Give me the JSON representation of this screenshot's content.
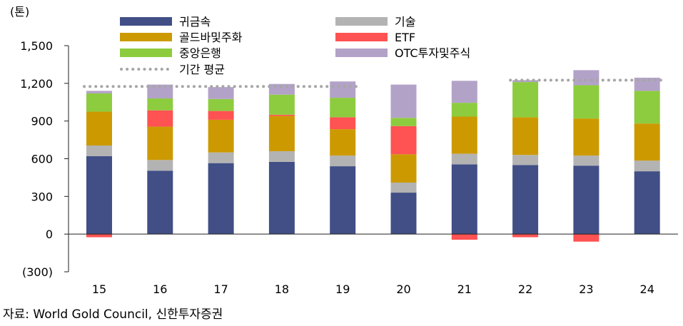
{
  "chart_data": {
    "type": "bar",
    "stacked": true,
    "unit_label": "(톤)",
    "categories": [
      "15",
      "16",
      "17",
      "18",
      "19",
      "20",
      "21",
      "22",
      "23",
      "24"
    ],
    "ylim": [
      -300,
      1500
    ],
    "yticks": [
      -300,
      0,
      300,
      600,
      900,
      1200,
      1500
    ],
    "ytick_labels": [
      "(300)",
      "0",
      "300",
      "600",
      "900",
      "1,200",
      "1,500"
    ],
    "series": [
      {
        "name": "귀금속",
        "color": "#414f86",
        "values": [
          620,
          505,
          565,
          575,
          540,
          330,
          555,
          550,
          545,
          500
        ]
      },
      {
        "name": "기술",
        "color": "#b3b3b3",
        "values": [
          85,
          85,
          85,
          85,
          85,
          80,
          85,
          80,
          80,
          85
        ]
      },
      {
        "name": "골드바및주화",
        "color": "#cc9a00",
        "values": [
          270,
          265,
          260,
          280,
          210,
          225,
          295,
          300,
          295,
          295
        ]
      },
      {
        "name": "ETF",
        "color": "#ff5252",
        "values": [
          -25,
          130,
          70,
          10,
          95,
          225,
          -45,
          -25,
          -60,
          0
        ]
      },
      {
        "name": "중앙은행",
        "color": "#8dcc3e",
        "values": [
          145,
          95,
          95,
          160,
          155,
          65,
          110,
          280,
          265,
          260
        ]
      },
      {
        "name": "OTC투자및주식",
        "color": "#b3a2c8",
        "values": [
          20,
          110,
          95,
          85,
          130,
          265,
          175,
          15,
          120,
          105
        ]
      }
    ],
    "average": {
      "name": "기간 평균",
      "color": "#a6a6a6",
      "segments": [
        {
          "from": "15",
          "to": "19",
          "value": 1175
        },
        {
          "from": "22",
          "to": "24",
          "value": 1225
        }
      ]
    },
    "legend_position": "top"
  },
  "source": "자료: World Gold Council, 신한투자증권"
}
